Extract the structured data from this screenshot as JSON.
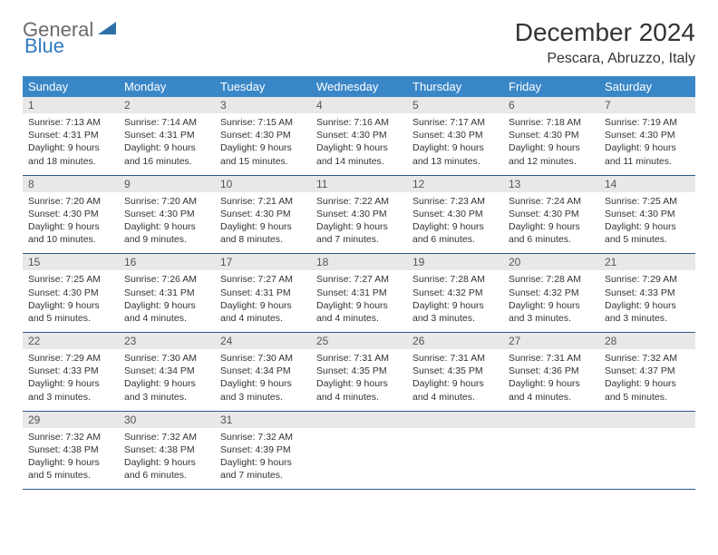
{
  "logo": {
    "general": "General",
    "blue": "Blue",
    "icon_color": "#2f6fa8"
  },
  "title": "December 2024",
  "location": "Pescara, Abruzzo, Italy",
  "header_bg": "#3a87c7",
  "header_fg": "#ffffff",
  "daynum_bg": "#e8e8e8",
  "row_border": "#2d5a8c",
  "weekdays": [
    "Sunday",
    "Monday",
    "Tuesday",
    "Wednesday",
    "Thursday",
    "Friday",
    "Saturday"
  ],
  "weeks": [
    [
      {
        "n": "1",
        "sunrise": "7:13 AM",
        "sunset": "4:31 PM",
        "daylight": "9 hours and 18 minutes."
      },
      {
        "n": "2",
        "sunrise": "7:14 AM",
        "sunset": "4:31 PM",
        "daylight": "9 hours and 16 minutes."
      },
      {
        "n": "3",
        "sunrise": "7:15 AM",
        "sunset": "4:30 PM",
        "daylight": "9 hours and 15 minutes."
      },
      {
        "n": "4",
        "sunrise": "7:16 AM",
        "sunset": "4:30 PM",
        "daylight": "9 hours and 14 minutes."
      },
      {
        "n": "5",
        "sunrise": "7:17 AM",
        "sunset": "4:30 PM",
        "daylight": "9 hours and 13 minutes."
      },
      {
        "n": "6",
        "sunrise": "7:18 AM",
        "sunset": "4:30 PM",
        "daylight": "9 hours and 12 minutes."
      },
      {
        "n": "7",
        "sunrise": "7:19 AM",
        "sunset": "4:30 PM",
        "daylight": "9 hours and 11 minutes."
      }
    ],
    [
      {
        "n": "8",
        "sunrise": "7:20 AM",
        "sunset": "4:30 PM",
        "daylight": "9 hours and 10 minutes."
      },
      {
        "n": "9",
        "sunrise": "7:20 AM",
        "sunset": "4:30 PM",
        "daylight": "9 hours and 9 minutes."
      },
      {
        "n": "10",
        "sunrise": "7:21 AM",
        "sunset": "4:30 PM",
        "daylight": "9 hours and 8 minutes."
      },
      {
        "n": "11",
        "sunrise": "7:22 AM",
        "sunset": "4:30 PM",
        "daylight": "9 hours and 7 minutes."
      },
      {
        "n": "12",
        "sunrise": "7:23 AM",
        "sunset": "4:30 PM",
        "daylight": "9 hours and 6 minutes."
      },
      {
        "n": "13",
        "sunrise": "7:24 AM",
        "sunset": "4:30 PM",
        "daylight": "9 hours and 6 minutes."
      },
      {
        "n": "14",
        "sunrise": "7:25 AM",
        "sunset": "4:30 PM",
        "daylight": "9 hours and 5 minutes."
      }
    ],
    [
      {
        "n": "15",
        "sunrise": "7:25 AM",
        "sunset": "4:30 PM",
        "daylight": "9 hours and 5 minutes."
      },
      {
        "n": "16",
        "sunrise": "7:26 AM",
        "sunset": "4:31 PM",
        "daylight": "9 hours and 4 minutes."
      },
      {
        "n": "17",
        "sunrise": "7:27 AM",
        "sunset": "4:31 PM",
        "daylight": "9 hours and 4 minutes."
      },
      {
        "n": "18",
        "sunrise": "7:27 AM",
        "sunset": "4:31 PM",
        "daylight": "9 hours and 4 minutes."
      },
      {
        "n": "19",
        "sunrise": "7:28 AM",
        "sunset": "4:32 PM",
        "daylight": "9 hours and 3 minutes."
      },
      {
        "n": "20",
        "sunrise": "7:28 AM",
        "sunset": "4:32 PM",
        "daylight": "9 hours and 3 minutes."
      },
      {
        "n": "21",
        "sunrise": "7:29 AM",
        "sunset": "4:33 PM",
        "daylight": "9 hours and 3 minutes."
      }
    ],
    [
      {
        "n": "22",
        "sunrise": "7:29 AM",
        "sunset": "4:33 PM",
        "daylight": "9 hours and 3 minutes."
      },
      {
        "n": "23",
        "sunrise": "7:30 AM",
        "sunset": "4:34 PM",
        "daylight": "9 hours and 3 minutes."
      },
      {
        "n": "24",
        "sunrise": "7:30 AM",
        "sunset": "4:34 PM",
        "daylight": "9 hours and 3 minutes."
      },
      {
        "n": "25",
        "sunrise": "7:31 AM",
        "sunset": "4:35 PM",
        "daylight": "9 hours and 4 minutes."
      },
      {
        "n": "26",
        "sunrise": "7:31 AM",
        "sunset": "4:35 PM",
        "daylight": "9 hours and 4 minutes."
      },
      {
        "n": "27",
        "sunrise": "7:31 AM",
        "sunset": "4:36 PM",
        "daylight": "9 hours and 4 minutes."
      },
      {
        "n": "28",
        "sunrise": "7:32 AM",
        "sunset": "4:37 PM",
        "daylight": "9 hours and 5 minutes."
      }
    ],
    [
      {
        "n": "29",
        "sunrise": "7:32 AM",
        "sunset": "4:38 PM",
        "daylight": "9 hours and 5 minutes."
      },
      {
        "n": "30",
        "sunrise": "7:32 AM",
        "sunset": "4:38 PM",
        "daylight": "9 hours and 6 minutes."
      },
      {
        "n": "31",
        "sunrise": "7:32 AM",
        "sunset": "4:39 PM",
        "daylight": "9 hours and 7 minutes."
      },
      null,
      null,
      null,
      null
    ]
  ],
  "labels": {
    "sunrise": "Sunrise:",
    "sunset": "Sunset:",
    "daylight": "Daylight:"
  }
}
